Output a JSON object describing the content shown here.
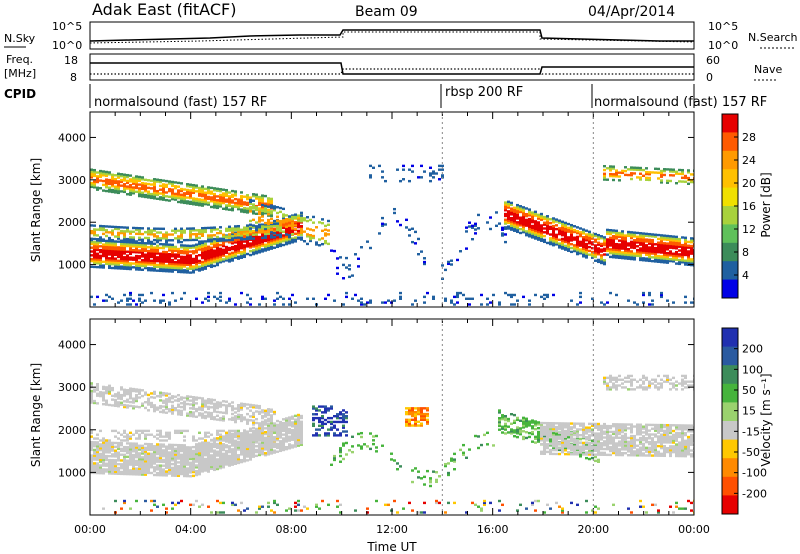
{
  "header": {
    "station": "Adak East (fitACF)",
    "beam": "Beam 09",
    "date": "04/Apr/2014"
  },
  "sky_panel": {
    "left_label": "N.Sky",
    "right_label": "N.Search",
    "left_ticks": [
      "10^5",
      "10^0"
    ],
    "right_ticks": [
      "10^5",
      "10^0"
    ]
  },
  "freq_panel": {
    "left_label_1": "Freq.",
    "left_label_2": "[MHz]",
    "right_label": "Nave",
    "left_ticks": [
      "18",
      "8"
    ],
    "right_ticks": [
      "60",
      "0"
    ]
  },
  "cpid_panel": {
    "label": "CPID",
    "segments": [
      {
        "label": "normalsound (fast) 157 RF",
        "start_hour": 0,
        "end_hour": 14
      },
      {
        "label": "rbsp 200 RF",
        "start_hour": 14,
        "end_hour": 20
      },
      {
        "label": "normalsound (fast) 157 RF",
        "start_hour": 20,
        "end_hour": 24
      }
    ]
  },
  "chart_data": [
    {
      "type": "heatmap",
      "title": "Power",
      "xlabel": "",
      "ylabel": "Slant Range [km]",
      "xlim": [
        0,
        24
      ],
      "ylim": [
        0,
        4600
      ],
      "y_ticks": [
        1000,
        2000,
        3000,
        4000
      ],
      "colorbar": {
        "label": "Power [dB]",
        "ticks": [
          "28",
          "24",
          "20",
          "16",
          "12",
          "8",
          "4"
        ],
        "colors": [
          "#e60000",
          "#ff5a00",
          "#ff9a00",
          "#ffc000",
          "#f0e000",
          "#a8d23c",
          "#5fc05a",
          "#3c8c5a",
          "#2060a0",
          "#0000e6"
        ]
      }
    },
    {
      "type": "heatmap",
      "title": "Velocity",
      "xlabel": "Time UT",
      "ylabel": "Slant Range [km]",
      "xlim": [
        0,
        24
      ],
      "ylim": [
        0,
        4600
      ],
      "y_ticks": [
        1000,
        2000,
        3000,
        4000
      ],
      "x_ticks": [
        "00:00",
        "04:00",
        "08:00",
        "12:00",
        "16:00",
        "20:00",
        "00:00"
      ],
      "colorbar": {
        "label": "Velocity [m s⁻¹]",
        "ticks": [
          "200",
          "100",
          "50",
          "15",
          "-15",
          "-50",
          "-100",
          "-200"
        ],
        "colors": [
          "#2030b0",
          "#2a5aa0",
          "#3c8c5a",
          "#46b43c",
          "#9ad26e",
          "#c8c8c8",
          "#ffc800",
          "#ff8a00",
          "#ff5000",
          "#e60000"
        ]
      }
    }
  ]
}
